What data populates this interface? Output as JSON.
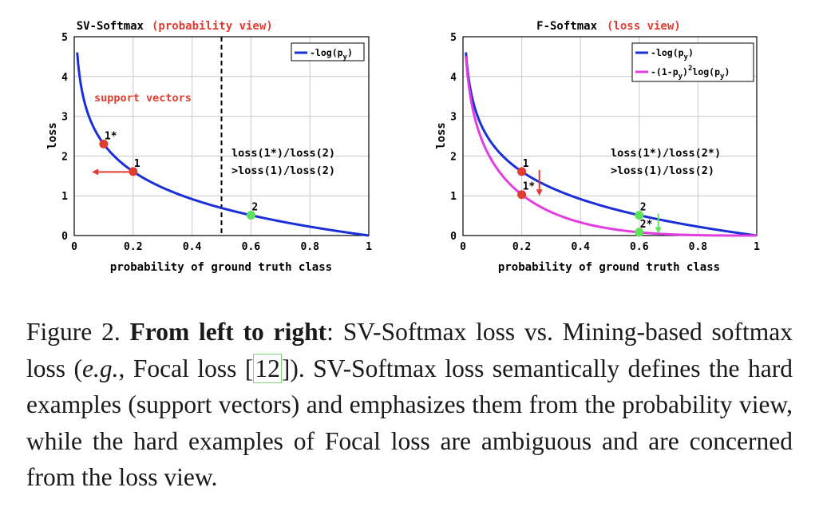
{
  "colors": {
    "curve_blue": "#1a2fd6",
    "curve_magenta": "#e23de0",
    "point_red": "#e03c31",
    "point_green": "#5de05a",
    "accent_red": "#e03c31",
    "axis": "#000000",
    "grid": "#c8c8c8"
  },
  "chart_data": [
    {
      "type": "line",
      "title": "SV-Softmax",
      "title_suffix": "(probability view)",
      "xlabel": "probability of ground truth class",
      "ylabel": "loss",
      "xlim": [
        0,
        1
      ],
      "ylim": [
        0,
        5
      ],
      "xticks": [
        "0",
        "0.2",
        "0.4",
        "0.6",
        "0.8",
        "1"
      ],
      "yticks": [
        "0",
        "1",
        "2",
        "3",
        "4",
        "5"
      ],
      "grid": true,
      "legend_position": "top-right",
      "series": [
        {
          "name": "-log(p",
          "name_sub": "y",
          "name_tail": ")",
          "function": "-log(p)",
          "x_range": [
            0.01,
            1
          ],
          "color": "#1a2fd6"
        }
      ],
      "points": [
        {
          "label": "1*",
          "x": 0.1,
          "y": 2.3026,
          "color": "#e03c31"
        },
        {
          "label": "1",
          "x": 0.2,
          "y": 1.6094,
          "color": "#e03c31"
        },
        {
          "label": "2",
          "x": 0.6,
          "y": 0.5108,
          "color": "#5de05a"
        }
      ],
      "threshold_x": 0.5,
      "arrow": {
        "from_x": 0.185,
        "to_x": 0.06,
        "y": 1.6,
        "color": "#e03c31"
      },
      "annotations": {
        "region": "support vectors",
        "ratio_line1": "loss(1*)/loss(2)",
        "ratio_line2": ">loss(1)/loss(2)"
      }
    },
    {
      "type": "line",
      "title": "F-Softmax",
      "title_suffix": "(loss view)",
      "xlabel": "probability of ground truth class",
      "ylabel": "loss",
      "xlim": [
        0,
        1
      ],
      "ylim": [
        0,
        5
      ],
      "xticks": [
        "0",
        "0.2",
        "0.4",
        "0.6",
        "0.8",
        "1"
      ],
      "yticks": [
        "0",
        "1",
        "2",
        "3",
        "4",
        "5"
      ],
      "grid": true,
      "legend_position": "top-right",
      "series": [
        {
          "name": "-log(p",
          "name_sub": "y",
          "name_tail": ")",
          "function": "-log(p)",
          "x_range": [
            0.01,
            1
          ],
          "color": "#1a2fd6"
        },
        {
          "name": "-(1-p",
          "name_sub": "y",
          "name_mid": ")",
          "name_sup": "2",
          "name_tail2": "log(p",
          "name_sub2": "y",
          "name_tail": ")",
          "function": "-(1-p)^2 log(p)",
          "x_range": [
            0.01,
            1
          ],
          "color": "#e23de0"
        }
      ],
      "points": [
        {
          "label": "1",
          "x": 0.2,
          "y": 1.6094,
          "color": "#e03c31"
        },
        {
          "label": "1*",
          "x": 0.2,
          "y": 1.03,
          "color": "#e03c31"
        },
        {
          "label": "2",
          "x": 0.6,
          "y": 0.5108,
          "color": "#5de05a"
        },
        {
          "label": "2*",
          "x": 0.6,
          "y": 0.0817,
          "color": "#5de05a"
        }
      ],
      "arrows": [
        {
          "x": 0.26,
          "from_y": 1.65,
          "to_y": 1.0,
          "color": "#e03c31"
        },
        {
          "x": 0.665,
          "from_y": 0.55,
          "to_y": 0.05,
          "color": "#5de05a"
        }
      ],
      "annotations": {
        "ratio_line1": "loss(1*)/loss(2*)",
        "ratio_line2": ">loss(1)/loss(2)"
      }
    }
  ],
  "caption": {
    "label": "Figure 2.",
    "bold": "From left to right",
    "t1": ": SV-Softmax loss vs. Mining-based softmax loss (",
    "eg": "e.g.",
    "t2": ", Focal loss [",
    "cite": "12",
    "t3": "]). SV-Softmax loss semantically defines the hard examples (support vectors) and emphasizes them from the probability view, while the hard examples of Focal loss are ambiguous and are concerned from the loss view."
  }
}
